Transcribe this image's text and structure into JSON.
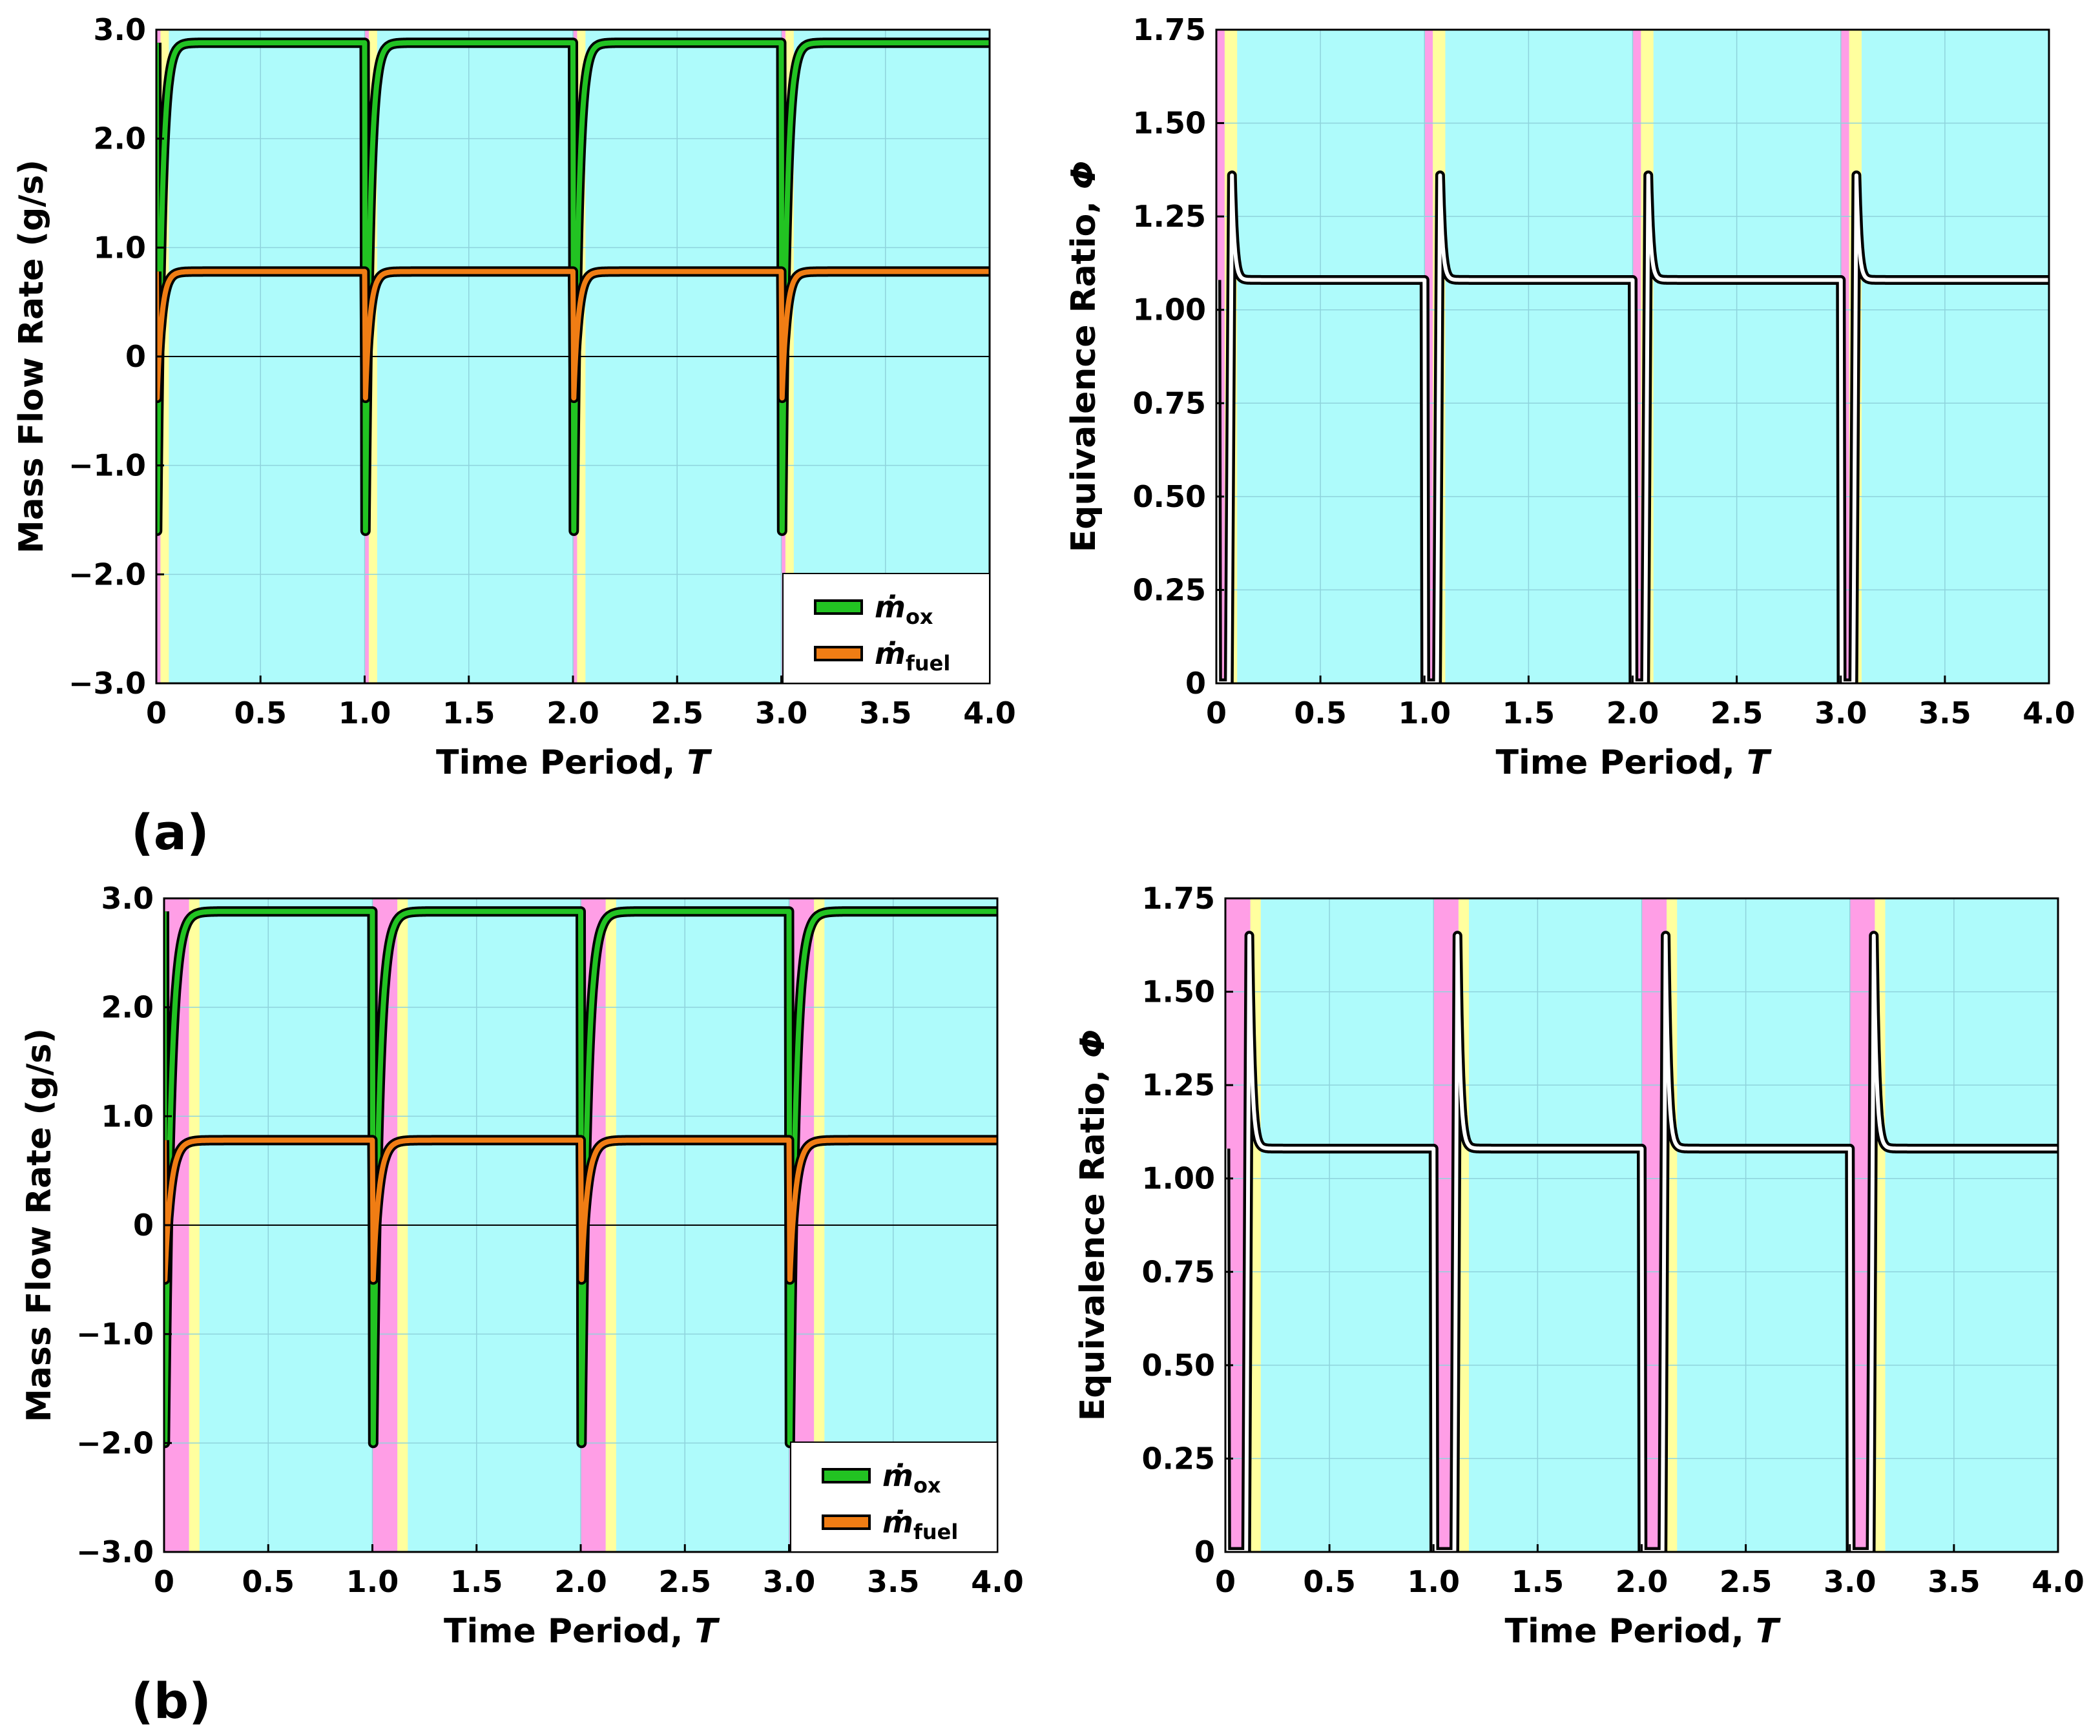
{
  "figure": {
    "panels": [
      {
        "label": "(a)"
      },
      {
        "label": "(b)"
      }
    ]
  },
  "chart_data": [
    {
      "id": "a-left",
      "type": "line",
      "panel": "(a)",
      "title": "",
      "xlabel": "Time Period, T",
      "xlabel_main": "Time Period, ",
      "xlabel_var": "T",
      "ylabel": "Mass Flow Rate (g/s)",
      "xlim": [
        0,
        4
      ],
      "ylim": [
        -3,
        3
      ],
      "xticks": [
        0,
        0.5,
        1,
        1.5,
        2,
        2.5,
        3,
        3.5,
        4
      ],
      "xtick_labels": [
        "0",
        "0.5",
        "1.0",
        "1.5",
        "2.0",
        "2.5",
        "3.0",
        "3.5",
        "4.0"
      ],
      "yticks": [
        -3,
        -2,
        -1,
        0,
        1,
        2,
        3
      ],
      "ytick_labels": [
        "−3.0",
        "−2.0",
        "−1.0",
        "0",
        "1.0",
        "2.0",
        "3.0"
      ],
      "grid": true,
      "zero_line": true,
      "legend_position": "bottom-right",
      "legend": [
        {
          "symbol": "ṁ",
          "sub": "ox",
          "color": "#22c322"
        },
        {
          "symbol": "ṁ",
          "sub": "fuel",
          "color": "#f07d14"
        }
      ],
      "phase_bands": {
        "period": 1,
        "colors": [
          "#ff9ee6",
          "#ffff9e",
          "#aefbfb"
        ],
        "widths": [
          0.02,
          0.04,
          0.06
        ]
      },
      "series": [
        {
          "name": "ṁox",
          "color": "#22c322",
          "steady": 2.88,
          "min": -1.6,
          "tau": 0.022
        },
        {
          "name": "ṁfuel",
          "color": "#f07d14",
          "steady": 0.78,
          "min": -0.38,
          "tau": 0.022
        }
      ]
    },
    {
      "id": "a-right",
      "type": "line",
      "panel": "(a)",
      "title": "",
      "xlabel": "Time Period, T",
      "xlabel_main": "Time Period, ",
      "xlabel_var": "T",
      "ylabel": "Equivalence Ratio, Φ",
      "ylabel_main": "Equivalence Ratio, ",
      "ylabel_var": "Φ",
      "xlim": [
        0,
        4
      ],
      "ylim": [
        0,
        1.75
      ],
      "xticks": [
        0,
        0.5,
        1,
        1.5,
        2,
        2.5,
        3,
        3.5,
        4
      ],
      "xtick_labels": [
        "0",
        "0.5",
        "1.0",
        "1.5",
        "2.0",
        "2.5",
        "3.0",
        "3.5",
        "4.0"
      ],
      "yticks": [
        0,
        0.25,
        0.5,
        0.75,
        1,
        1.25,
        1.5,
        1.75
      ],
      "ytick_labels": [
        "0",
        "0.25",
        "0.50",
        "0.75",
        "1.00",
        "1.25",
        "1.50",
        "1.75"
      ],
      "grid": true,
      "phase_bands": {
        "period": 1,
        "colors": [
          "#ff9ee6",
          "#ffff9e",
          "#aefbfb"
        ],
        "widths": [
          0.04,
          0.06,
          0.06
        ]
      },
      "series": [
        {
          "name": "Φ",
          "color": "#000000",
          "steady": 1.08,
          "peak": 1.36,
          "t_rise": 0.06,
          "t_peak": 0.075,
          "tau": 0.012
        }
      ]
    },
    {
      "id": "b-left",
      "type": "line",
      "panel": "(b)",
      "title": "",
      "xlabel": "Time Period, T",
      "xlabel_main": "Time Period, ",
      "xlabel_var": "T",
      "ylabel": "Mass Flow Rate (g/s)",
      "xlim": [
        0,
        4
      ],
      "ylim": [
        -3,
        3
      ],
      "xticks": [
        0,
        0.5,
        1,
        1.5,
        2,
        2.5,
        3,
        3.5,
        4
      ],
      "xtick_labels": [
        "0",
        "0.5",
        "1.0",
        "1.5",
        "2.0",
        "2.5",
        "3.0",
        "3.5",
        "4.0"
      ],
      "yticks": [
        -3,
        -2,
        -1,
        0,
        1,
        2,
        3
      ],
      "ytick_labels": [
        "−3.0",
        "−2.0",
        "−1.0",
        "0",
        "1.0",
        "2.0",
        "3.0"
      ],
      "grid": true,
      "zero_line": true,
      "legend_position": "bottom-right",
      "legend": [
        {
          "symbol": "ṁ",
          "sub": "ox",
          "color": "#22c322"
        },
        {
          "symbol": "ṁ",
          "sub": "fuel",
          "color": "#f07d14"
        }
      ],
      "phase_bands": {
        "period": 1,
        "colors": [
          "#ff9ee6",
          "#ffff9e",
          "#aefbfb"
        ],
        "widths": [
          0.12,
          0.05,
          0.05
        ]
      },
      "series": [
        {
          "name": "ṁox",
          "color": "#22c322",
          "steady": 2.88,
          "min": -2.0,
          "tau": 0.028
        },
        {
          "name": "ṁfuel",
          "color": "#f07d14",
          "steady": 0.78,
          "min": -0.5,
          "tau": 0.028
        }
      ]
    },
    {
      "id": "b-right",
      "type": "line",
      "panel": "(b)",
      "title": "",
      "xlabel": "Time Period, T",
      "xlabel_main": "Time Period, ",
      "xlabel_var": "T",
      "ylabel": "Equivalence Ratio, Φ",
      "ylabel_main": "Equivalence Ratio, ",
      "ylabel_var": "Φ",
      "xlim": [
        0,
        4
      ],
      "ylim": [
        0,
        1.75
      ],
      "xticks": [
        0,
        0.5,
        1,
        1.5,
        2,
        2.5,
        3,
        3.5,
        4
      ],
      "xtick_labels": [
        "0",
        "0.5",
        "1.0",
        "1.5",
        "2.0",
        "2.5",
        "3.0",
        "3.5",
        "4.0"
      ],
      "yticks": [
        0,
        0.25,
        0.5,
        0.75,
        1,
        1.25,
        1.5,
        1.75
      ],
      "ytick_labels": [
        "0",
        "0.25",
        "0.50",
        "0.75",
        "1.00",
        "1.25",
        "1.50",
        "1.75"
      ],
      "grid": true,
      "phase_bands": {
        "period": 1,
        "colors": [
          "#ff9ee6",
          "#ffff9e",
          "#aefbfb"
        ],
        "widths": [
          0.12,
          0.05,
          0.05
        ]
      },
      "series": [
        {
          "name": "Φ",
          "color": "#000000",
          "steady": 1.08,
          "peak": 1.65,
          "t_rise": 0.1,
          "t_peak": 0.115,
          "tau": 0.013
        }
      ]
    }
  ]
}
